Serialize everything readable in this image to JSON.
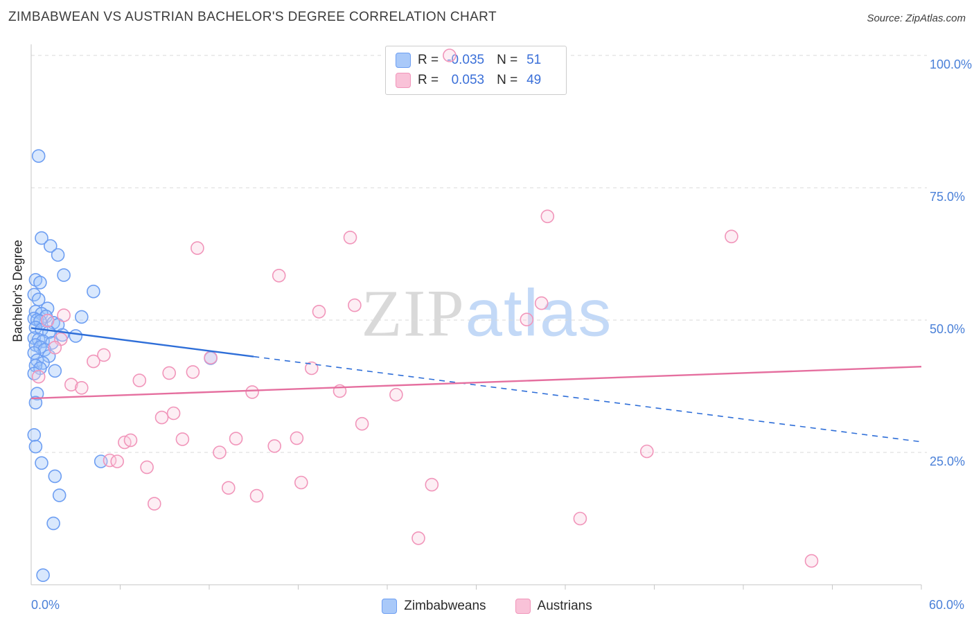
{
  "header": {
    "title": "ZIMBABWEAN VS AUSTRIAN BACHELOR'S DEGREE CORRELATION CHART",
    "source": "Source: ZipAtlas.com"
  },
  "watermark": {
    "part1": "ZIP",
    "part2": "atlas"
  },
  "y_axis_label": "Bachelor's Degree",
  "x_axis_labels": {
    "min_label": "0.0%",
    "max_label": "60.0%"
  },
  "correlation_legend": {
    "rows": [
      {
        "series": "Zimbabweans",
        "r_label": "R =",
        "r_value": "-0.035",
        "n_label": "N =",
        "n_value": "51"
      },
      {
        "series": "Austrians",
        "r_label": "R =",
        "r_value": "0.053",
        "n_label": "N =",
        "n_value": "49"
      }
    ]
  },
  "bottom_legend": [
    {
      "label": "Zimbabweans"
    },
    {
      "label": "Austrians"
    }
  ],
  "theme": {
    "blue_marker_stroke": "#6d9ef2",
    "blue_marker_fill": "rgba(155,195,250,0.38)",
    "pink_marker_stroke": "#f195ba",
    "pink_marker_fill": "rgba(250,205,223,0.35)",
    "blue_trend": "#2e6ed8",
    "pink_trend": "#e56f9f",
    "gridline": "#dadada",
    "axis_line": "#c6c6c6",
    "axis_tick_label": "#4a80d8"
  },
  "chart_data": {
    "type": "scatter",
    "title": "ZIMBABWEAN VS AUSTRIAN BACHELOR'S DEGREE CORRELATION CHART",
    "xlabel": "",
    "ylabel": "Bachelor's Degree",
    "x_axis": {
      "min": 0,
      "max": 60,
      "tick_interval": 6,
      "unit": "%",
      "shown_tick_labels": [
        "0.0%",
        "60.0%"
      ]
    },
    "y_axis": {
      "min": 0,
      "max": 100,
      "unit": "%",
      "gridlines": [
        25,
        50,
        75,
        100
      ],
      "tick_labels": [
        "25.0%",
        "50.0%",
        "75.0%",
        "100.0%"
      ],
      "grid_style": "dashed"
    },
    "legend_position": "bottom-center",
    "series": [
      {
        "name": "Zimbabweans",
        "R": -0.035,
        "N": 51,
        "points": [
          [
            0.5,
            81.0
          ],
          [
            0.7,
            65.5
          ],
          [
            1.3,
            64.0
          ],
          [
            1.8,
            62.3
          ],
          [
            2.2,
            58.5
          ],
          [
            0.3,
            57.6
          ],
          [
            0.6,
            57.1
          ],
          [
            4.2,
            55.4
          ],
          [
            0.2,
            54.8
          ],
          [
            0.5,
            53.9
          ],
          [
            1.1,
            52.2
          ],
          [
            0.3,
            51.6
          ],
          [
            0.7,
            51.2
          ],
          [
            1.0,
            50.7
          ],
          [
            3.4,
            50.6
          ],
          [
            0.2,
            50.3
          ],
          [
            0.4,
            50.0
          ],
          [
            0.6,
            49.8
          ],
          [
            1.5,
            49.5
          ],
          [
            1.8,
            49.1
          ],
          [
            0.3,
            48.6
          ],
          [
            0.7,
            48.2
          ],
          [
            1.2,
            47.7
          ],
          [
            2.1,
            47.2
          ],
          [
            3.0,
            47.0
          ],
          [
            0.2,
            46.6
          ],
          [
            0.5,
            46.3
          ],
          [
            0.8,
            46.0
          ],
          [
            1.4,
            45.7
          ],
          [
            0.3,
            45.3
          ],
          [
            0.6,
            44.9
          ],
          [
            0.9,
            44.4
          ],
          [
            0.2,
            43.8
          ],
          [
            1.2,
            43.2
          ],
          [
            12.1,
            42.8
          ],
          [
            0.4,
            42.4
          ],
          [
            0.8,
            41.9
          ],
          [
            0.3,
            41.4
          ],
          [
            0.6,
            40.9
          ],
          [
            1.6,
            40.4
          ],
          [
            0.2,
            39.9
          ],
          [
            0.8,
            1.8
          ],
          [
            0.4,
            36.1
          ],
          [
            0.3,
            34.4
          ],
          [
            0.2,
            28.3
          ],
          [
            0.3,
            26.1
          ],
          [
            0.7,
            23.0
          ],
          [
            4.7,
            23.3
          ],
          [
            1.6,
            20.5
          ],
          [
            1.9,
            16.9
          ],
          [
            1.5,
            11.6
          ]
        ]
      },
      {
        "name": "Austrians",
        "R": 0.053,
        "N": 49,
        "points": [
          [
            28.2,
            100.0
          ],
          [
            34.8,
            69.6
          ],
          [
            47.2,
            65.8
          ],
          [
            21.5,
            65.6
          ],
          [
            11.2,
            63.6
          ],
          [
            16.7,
            58.4
          ],
          [
            34.4,
            53.2
          ],
          [
            21.8,
            52.8
          ],
          [
            19.4,
            51.6
          ],
          [
            33.4,
            50.1
          ],
          [
            2.2,
            50.9
          ],
          [
            1.1,
            49.9
          ],
          [
            2.0,
            46.4
          ],
          [
            1.6,
            44.8
          ],
          [
            12.1,
            42.9
          ],
          [
            18.9,
            40.9
          ],
          [
            10.9,
            40.2
          ],
          [
            4.2,
            42.2
          ],
          [
            4.9,
            43.4
          ],
          [
            2.7,
            37.8
          ],
          [
            0.5,
            39.3
          ],
          [
            3.4,
            37.2
          ],
          [
            7.3,
            38.6
          ],
          [
            9.3,
            40.0
          ],
          [
            14.9,
            36.4
          ],
          [
            20.8,
            36.6
          ],
          [
            24.6,
            35.9
          ],
          [
            8.8,
            31.6
          ],
          [
            9.6,
            32.4
          ],
          [
            22.3,
            30.4
          ],
          [
            10.2,
            27.5
          ],
          [
            13.8,
            27.6
          ],
          [
            12.7,
            25.0
          ],
          [
            6.3,
            26.9
          ],
          [
            6.7,
            27.3
          ],
          [
            16.4,
            26.2
          ],
          [
            17.9,
            27.7
          ],
          [
            5.3,
            23.5
          ],
          [
            5.8,
            23.3
          ],
          [
            7.8,
            22.2
          ],
          [
            41.5,
            25.2
          ],
          [
            13.3,
            18.3
          ],
          [
            18.2,
            19.3
          ],
          [
            15.2,
            16.8
          ],
          [
            27.0,
            18.9
          ],
          [
            8.3,
            15.3
          ],
          [
            37.0,
            12.5
          ],
          [
            26.1,
            8.8
          ],
          [
            52.6,
            4.5
          ]
        ]
      }
    ],
    "trend_lines": [
      {
        "series": "Zimbabweans",
        "style": "solid-then-dashed",
        "solid": [
          [
            0,
            48.5
          ],
          [
            15,
            43.1
          ]
        ],
        "dashed": [
          [
            15,
            43.1
          ],
          [
            60,
            27.0
          ]
        ]
      },
      {
        "series": "Austrians",
        "style": "solid",
        "solid": [
          [
            0,
            35.2
          ],
          [
            60,
            41.2
          ]
        ]
      }
    ]
  }
}
